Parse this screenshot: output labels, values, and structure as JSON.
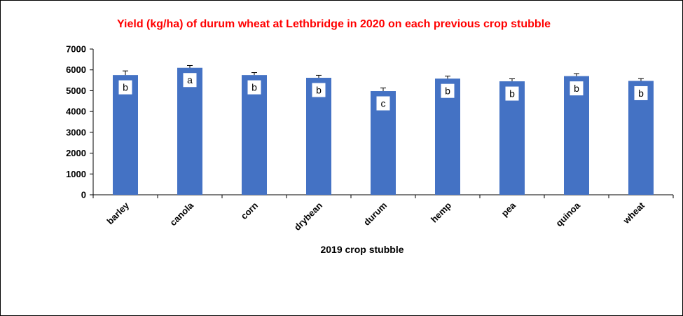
{
  "chart_data": {
    "type": "bar",
    "title": "Yield (kg/ha)  of durum wheat at Lethbridge in  2020 on each previous crop stubble",
    "xlabel": "2019  crop  stubble",
    "ylabel": "",
    "ylim": [
      0,
      7000
    ],
    "yticks": [
      0,
      1000,
      2000,
      3000,
      4000,
      5000,
      6000,
      7000
    ],
    "grid": false,
    "categories": [
      "barley",
      "canola",
      "corn",
      "drybean",
      "durum",
      "hemp",
      "pea",
      "quinoa",
      "wheat"
    ],
    "values": [
      5750,
      6100,
      5750,
      5620,
      4980,
      5580,
      5450,
      5700,
      5470
    ],
    "errors": [
      200,
      110,
      120,
      120,
      150,
      120,
      120,
      120,
      110
    ],
    "letters": [
      "b",
      "a",
      "b",
      "b",
      "c",
      "b",
      "b",
      "b",
      "b"
    ],
    "bar_color": "#4472C4",
    "title_color": "#FF0000"
  }
}
